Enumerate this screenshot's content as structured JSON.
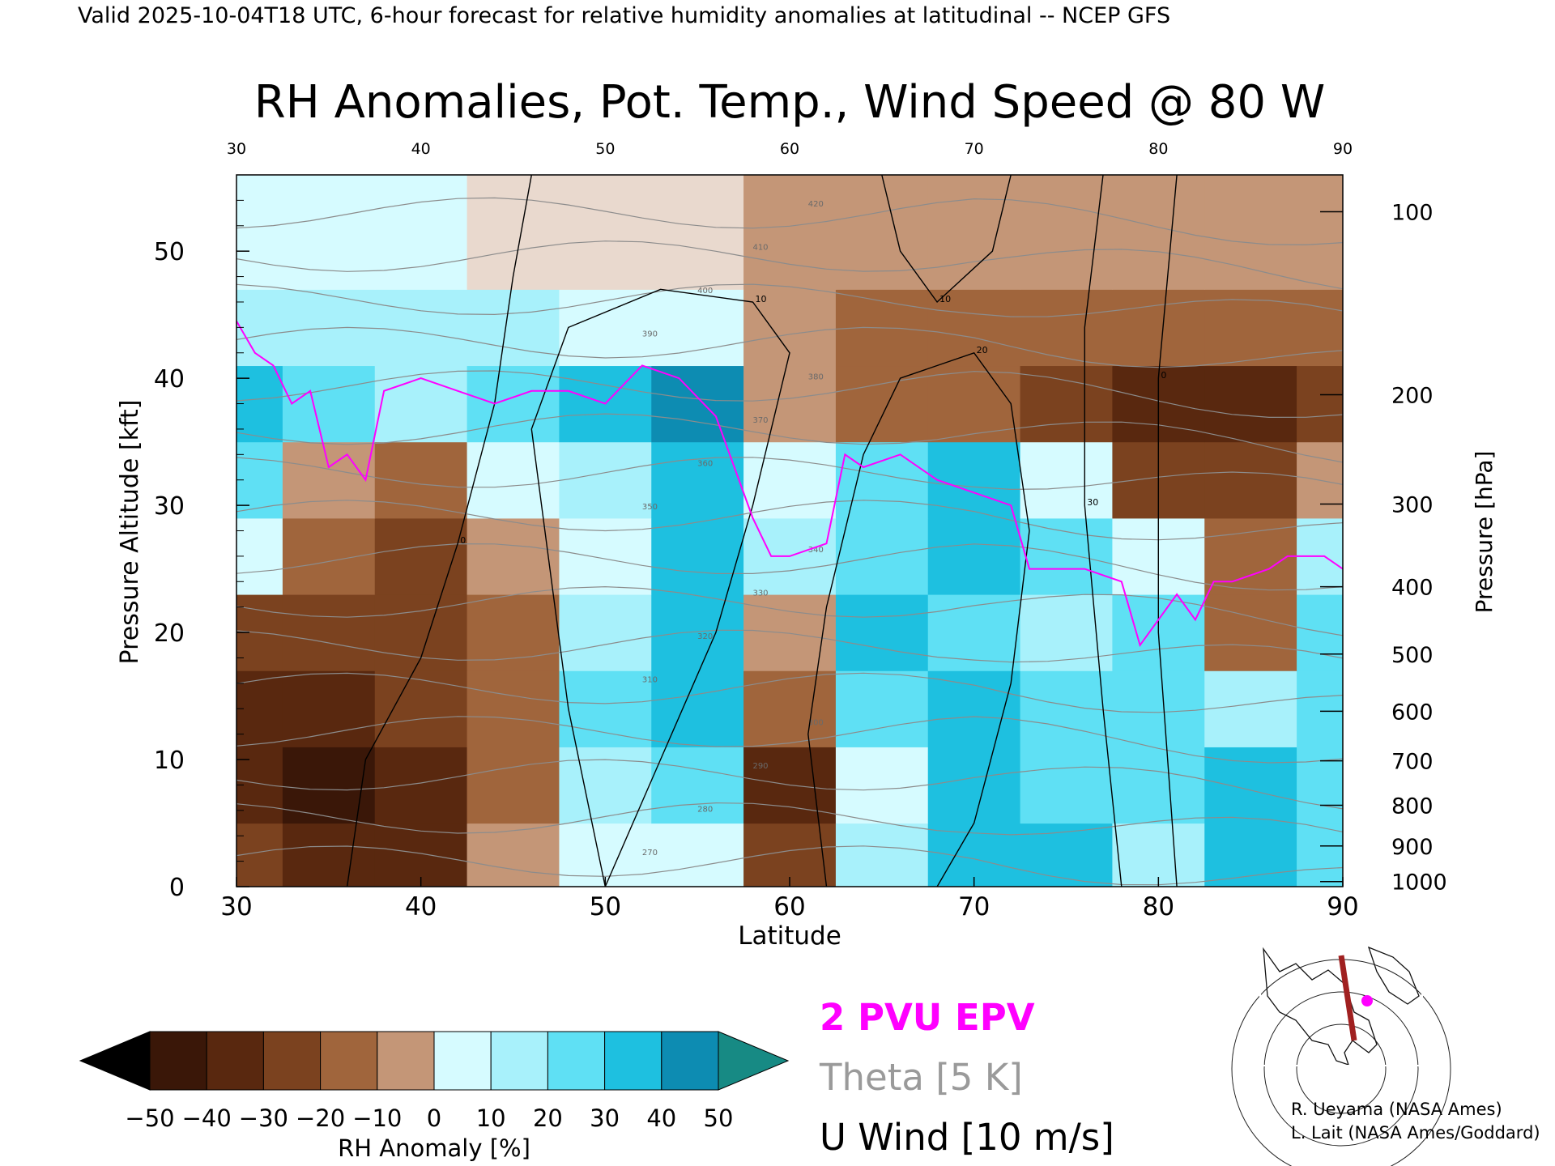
{
  "header_text": "Valid 2025-10-04T18 UTC, 6-hour forecast for relative humidity anomalies at latitudinal -- NCEP GFS",
  "chart_data": {
    "type": "heatmap",
    "title": "RH Anomalies, Pot. Temp., Wind Speed @ 80 W",
    "xlabel": "Latitude",
    "ylabel_left": "Pressure Altitude [kft]",
    "ylabel_right": "Pressure [hPa]",
    "xlim": [
      30,
      90
    ],
    "ylim": [
      0,
      56
    ],
    "x_ticks": [
      30,
      40,
      50,
      60,
      70,
      80,
      90
    ],
    "top_ticks": [
      30,
      40,
      50,
      60,
      70,
      80,
      90
    ],
    "y_ticks": [
      0,
      10,
      20,
      30,
      40,
      50
    ],
    "pressure_ticks": [
      {
        "label": "100",
        "kft": 53.1
      },
      {
        "label": "200",
        "kft": 38.7
      },
      {
        "label": "300",
        "kft": 30.1
      },
      {
        "label": "400",
        "kft": 23.6
      },
      {
        "label": "500",
        "kft": 18.3
      },
      {
        "label": "600",
        "kft": 13.8
      },
      {
        "label": "700",
        "kft": 9.9
      },
      {
        "label": "800",
        "kft": 6.4
      },
      {
        "label": "900",
        "kft": 3.2
      },
      {
        "label": "1000",
        "kft": 0.4
      }
    ],
    "colorbar": {
      "label": "RH Anomaly [%]",
      "ticks": [
        "−50",
        "−40",
        "−30",
        "−20",
        "−10",
        "0",
        "10",
        "20",
        "30",
        "40",
        "50"
      ],
      "colors": [
        "#3a1708",
        "#59280f",
        "#7b421f",
        "#a0653c",
        "#c49677",
        "#e9d9ce",
        "#d6fbff",
        "#a8f1fb",
        "#5fe0f4",
        "#1ec0e0",
        "#0d8cb2"
      ],
      "low_color": "#000000",
      "high_color": "#178a84"
    },
    "rh_field": {
      "lats": [
        30,
        35,
        40,
        45,
        50,
        55,
        60,
        65,
        70,
        75,
        80,
        85,
        90
      ],
      "kfts": [
        2,
        8,
        14,
        20,
        26,
        32,
        38,
        44,
        50
      ],
      "values": [
        [
          -30,
          -38,
          -40,
          -10,
          10,
          10,
          -30,
          20,
          40,
          40,
          20,
          40,
          30
        ],
        [
          -40,
          -48,
          -40,
          -20,
          20,
          30,
          -45,
          10,
          40,
          30,
          30,
          40,
          30
        ],
        [
          -40,
          -42,
          -30,
          -20,
          30,
          40,
          -20,
          30,
          40,
          30,
          30,
          20,
          30
        ],
        [
          -30,
          -30,
          -30,
          -20,
          20,
          40,
          -10,
          40,
          30,
          20,
          30,
          -20,
          30
        ],
        [
          10,
          -20,
          -30,
          -10,
          10,
          40,
          20,
          30,
          40,
          30,
          10,
          -20,
          20
        ],
        [
          30,
          -10,
          -20,
          10,
          20,
          40,
          10,
          30,
          40,
          10,
          -30,
          -30,
          -10
        ],
        [
          40,
          30,
          20,
          30,
          40,
          50,
          -10,
          -20,
          -20,
          -30,
          -40,
          -40,
          -30
        ],
        [
          20,
          20,
          20,
          20,
          10,
          10,
          -10,
          -20,
          -20,
          -20,
          -20,
          -20,
          -20
        ],
        [
          10,
          10,
          5,
          0,
          0,
          -5,
          -10,
          -10,
          -10,
          -10,
          -10,
          -10,
          -10
        ]
      ]
    },
    "series": [
      {
        "name": "2 PVU EPV",
        "color": "#ff00ff",
        "x": [
          30,
          31,
          32,
          33,
          34,
          35,
          36,
          37,
          38,
          40,
          42,
          44,
          46,
          48,
          50,
          52,
          54,
          56,
          57,
          58,
          59,
          60,
          62,
          63,
          64,
          66,
          68,
          70,
          72,
          73,
          76,
          78,
          79,
          81,
          82,
          83,
          84,
          86,
          87,
          89,
          90
        ],
        "y": [
          44.5,
          42,
          41,
          38,
          39,
          33,
          34,
          32,
          39,
          40,
          39,
          38,
          39,
          39,
          38,
          41,
          40,
          37,
          33,
          29,
          26,
          26,
          27,
          34,
          33,
          34,
          32,
          31,
          30,
          25,
          25,
          24,
          19,
          23,
          21,
          24,
          24,
          25,
          26,
          26,
          25
        ]
      }
    ],
    "theta_labels": [
      "270",
      "280",
      "290",
      "300",
      "310",
      "320",
      "330",
      "340",
      "350",
      "360",
      "370",
      "380",
      "390",
      "400",
      "410",
      "420"
    ],
    "wind_labels": [
      "0",
      "10",
      "20",
      "30"
    ],
    "legend": [
      {
        "label": "2 PVU EPV",
        "color": "#ff00ff"
      },
      {
        "label": "Theta [5 K]",
        "color": "#9a9a9a"
      },
      {
        "label": "U Wind [10 m/s]",
        "color": "#000000"
      }
    ],
    "legend_placement": "bottom-center"
  },
  "inset_map": {
    "name": "cross-section location map",
    "marker_color": "#ff00ff",
    "line_color": "#a02020"
  },
  "credits": [
    "R. Ueyama (NASA Ames)",
    "L. Lait (NASA Ames/Goddard)"
  ]
}
